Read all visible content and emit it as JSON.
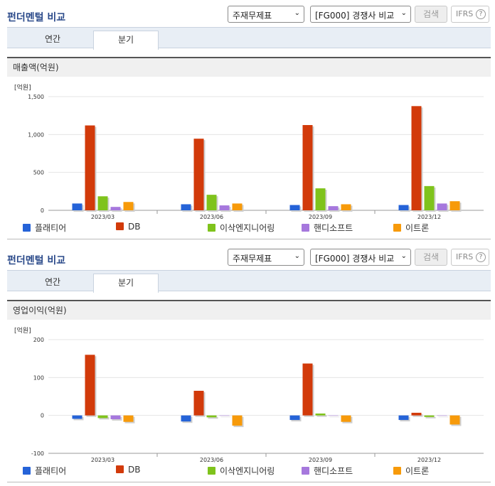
{
  "header": {
    "title": "펀더멘털 비교",
    "select1": "주재무제표",
    "select2": "[FG000] 경쟁사 비교",
    "search_label": "검색",
    "ifrs_label": "IFRS",
    "help_glyph": "?"
  },
  "tabs": [
    "연간",
    "분기"
  ],
  "colors": {
    "플래티어": "#2563d8",
    "DB": "#d23a0a",
    "이삭엔지니어링": "#7fc31c",
    "핸디소프트": "#a678dd",
    "이트론": "#f79a0a"
  },
  "chart_data": [
    {
      "type": "bar",
      "title": "매출액(억원)",
      "unit": "[억원]",
      "categories": [
        "2023/03",
        "2023/06",
        "2023/09",
        "2023/12"
      ],
      "ylim": [
        0,
        1500
      ],
      "yticks": [
        0,
        500,
        1000,
        1500
      ],
      "ytick_labels": [
        "0",
        "500",
        "1,000",
        "1,500"
      ],
      "series": [
        {
          "name": "플래티어",
          "values": [
            90,
            80,
            70,
            70
          ]
        },
        {
          "name": "DB",
          "values": [
            1120,
            945,
            1125,
            1375
          ]
        },
        {
          "name": "이삭엔지니어링",
          "values": [
            185,
            205,
            290,
            320
          ]
        },
        {
          "name": "핸디소프트",
          "values": [
            45,
            65,
            55,
            90
          ]
        },
        {
          "name": "이트론",
          "values": [
            110,
            90,
            80,
            120
          ]
        }
      ],
      "legend": "bottom"
    },
    {
      "type": "bar",
      "title": "영업이익(억원)",
      "unit": "[억원]",
      "categories": [
        "2023/03",
        "2023/06",
        "2023/09",
        "2023/12"
      ],
      "ylim": [
        -100,
        200
      ],
      "yticks": [
        -100,
        0,
        100,
        200
      ],
      "ytick_labels": [
        "-100",
        "0",
        "100",
        "200"
      ],
      "series": [
        {
          "name": "플래티어",
          "values": [
            -9,
            -16,
            -12,
            -12
          ]
        },
        {
          "name": "DB",
          "values": [
            160,
            65,
            137,
            7
          ]
        },
        {
          "name": "이삭엔지니어링",
          "values": [
            -7,
            -5,
            5,
            -4
          ]
        },
        {
          "name": "핸디소프트",
          "values": [
            -10,
            0,
            0,
            0
          ]
        },
        {
          "name": "이트론",
          "values": [
            -17,
            -27,
            -17,
            -24
          ]
        }
      ],
      "legend": "bottom"
    }
  ]
}
